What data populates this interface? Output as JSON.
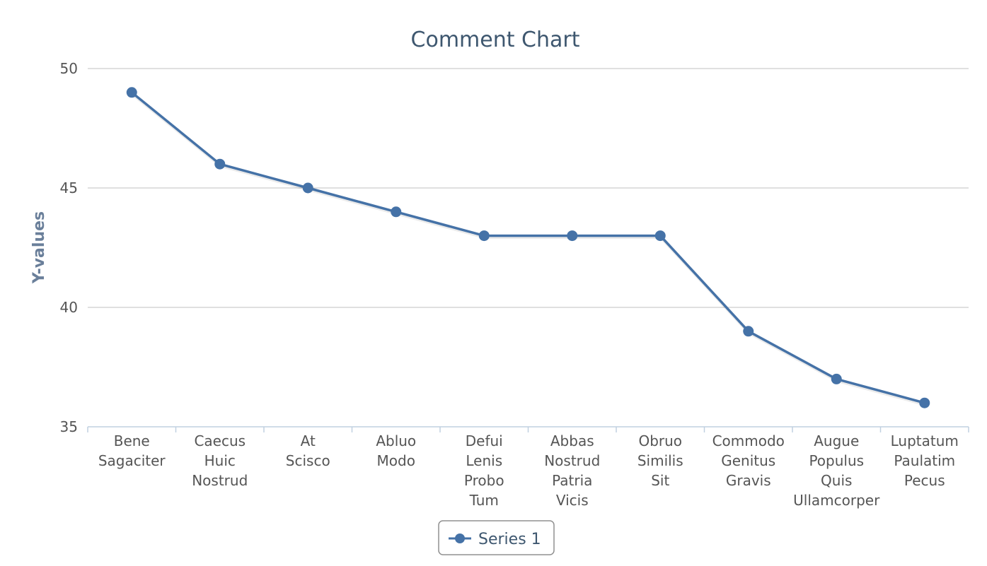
{
  "chart_data": {
    "type": "line",
    "title": "Comment Chart",
    "ylabel": "Y-values",
    "xlabel": "",
    "ylim": [
      35,
      50
    ],
    "yticks": [
      35,
      40,
      45,
      50
    ],
    "grid": true,
    "legend_position": "bottom-center",
    "categories": [
      "Bene Sagaciter",
      "Caecus Huic Nostrud",
      "At Scisco",
      "Abluo Modo",
      "Defui Lenis Probo Tum",
      "Abbas Nostrud Patria Vicis",
      "Obruo Similis Sit",
      "Commodo Genitus Gravis",
      "Augue Populus Quis Ullamcorper",
      "Luptatum Paulatim Pecus"
    ],
    "series": [
      {
        "name": "Series 1",
        "color": "#4572a7",
        "values": [
          49,
          46,
          45,
          44,
          43,
          43,
          43,
          39,
          37,
          36
        ]
      }
    ]
  }
}
